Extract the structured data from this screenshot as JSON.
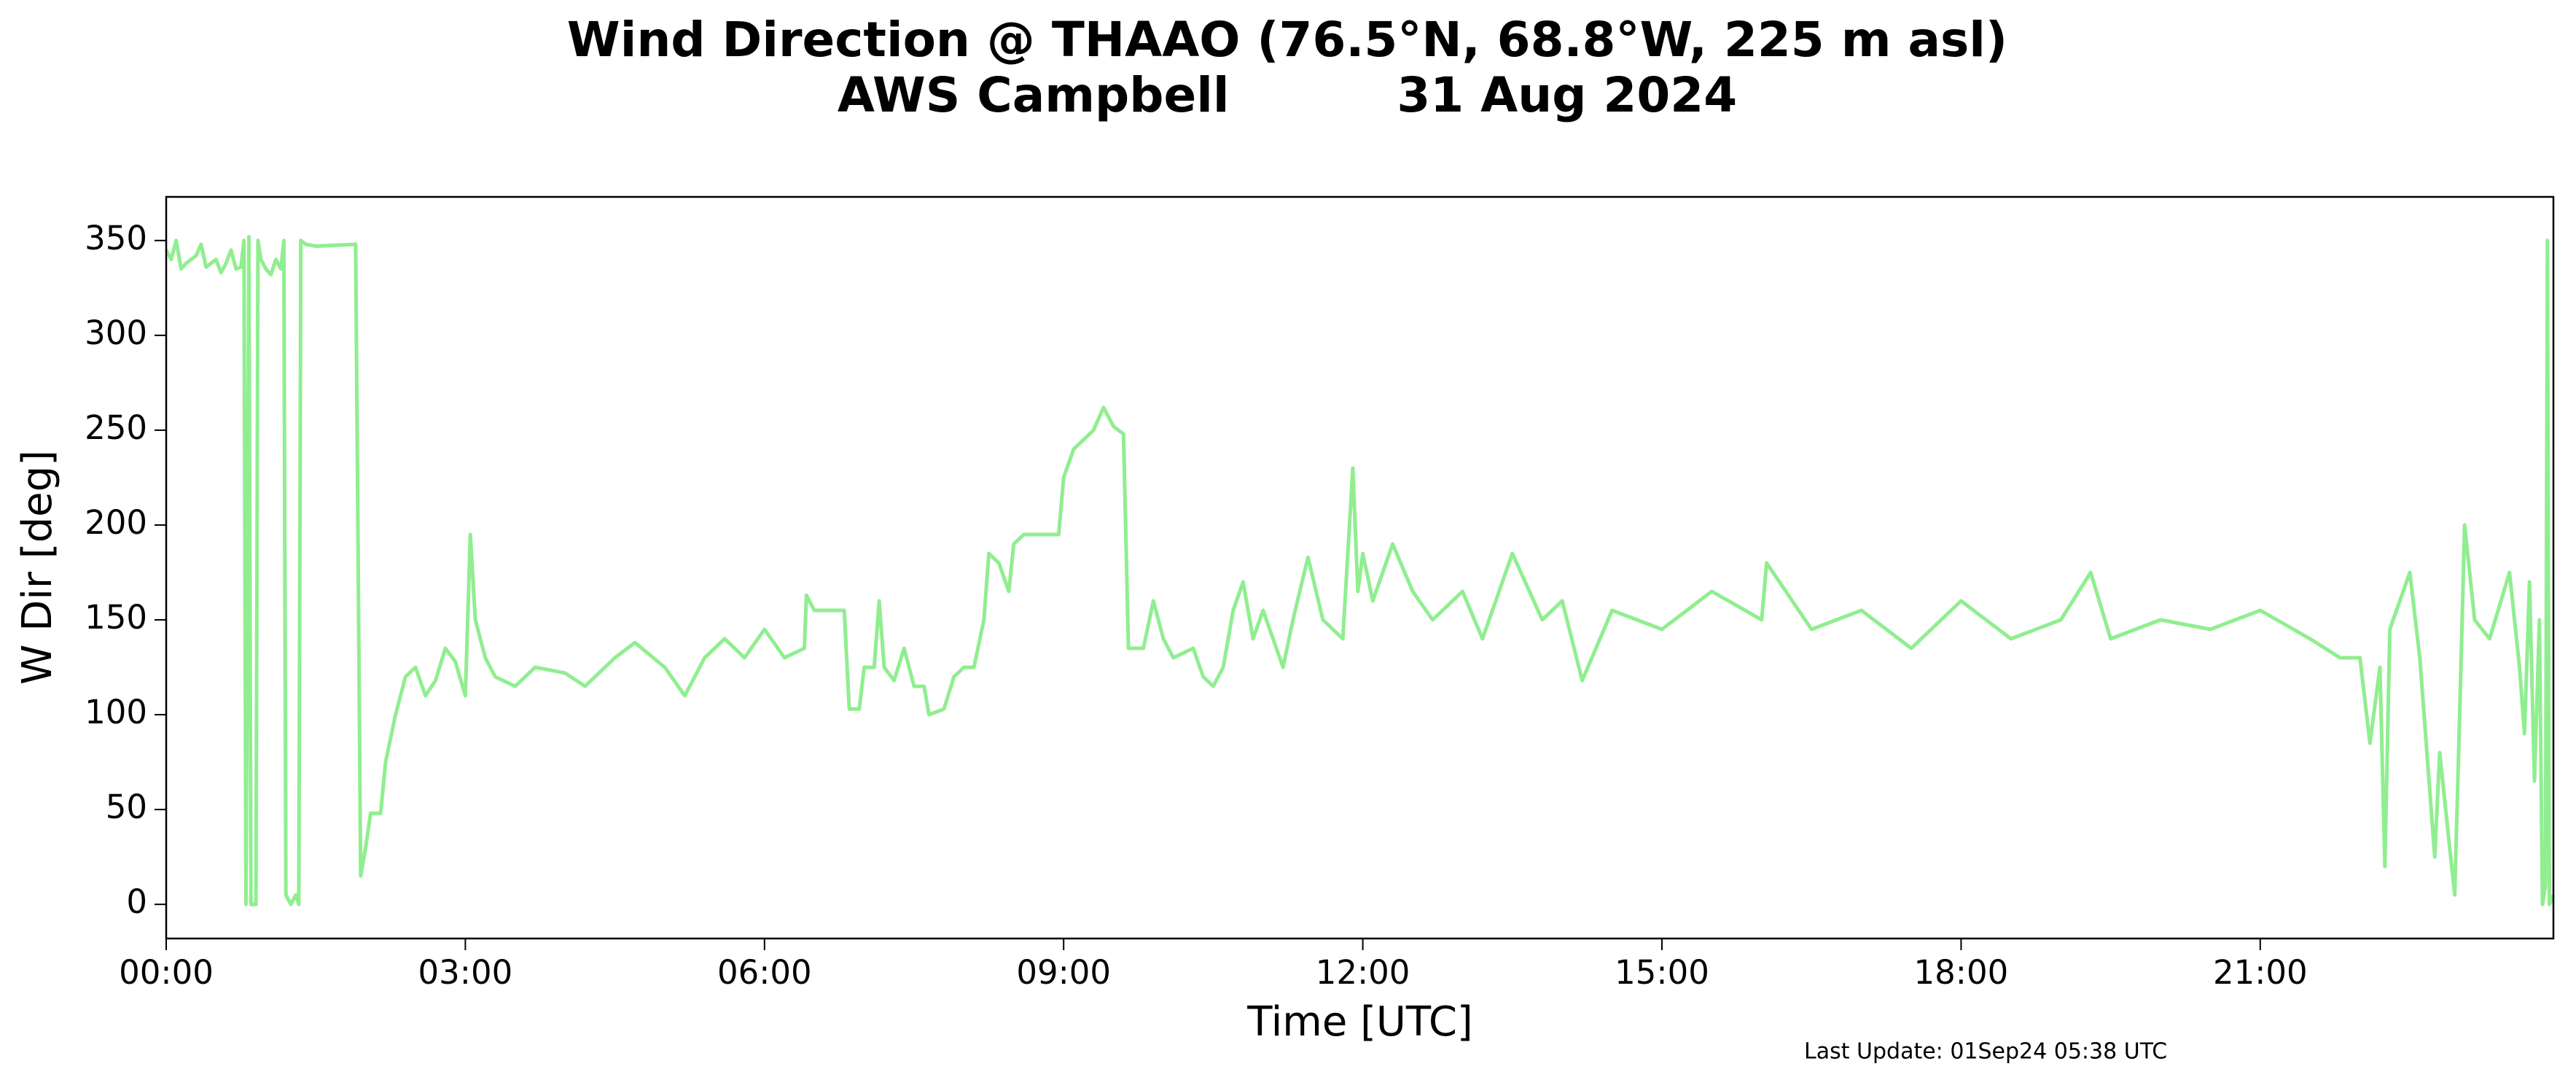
{
  "chart_data": {
    "type": "line",
    "title": "Wind Direction @ THAAO (76.5°N, 68.8°W, 225 m asl)",
    "subtitle": "AWS Campbell          31 Aug 2024",
    "xlabel": "Time [UTC]",
    "ylabel": "W Dir [deg]",
    "annotation": "Last Update: 01Sep24 05:38 UTC",
    "xlim": [
      0,
      23.94
    ],
    "ylim": [
      -18,
      373
    ],
    "xticks": [
      {
        "value": 0,
        "label": "00:00"
      },
      {
        "value": 3,
        "label": "03:00"
      },
      {
        "value": 6,
        "label": "06:00"
      },
      {
        "value": 9,
        "label": "09:00"
      },
      {
        "value": 12,
        "label": "12:00"
      },
      {
        "value": 15,
        "label": "15:00"
      },
      {
        "value": 18,
        "label": "18:00"
      },
      {
        "value": 21,
        "label": "21:00"
      }
    ],
    "yticks": [
      0,
      50,
      100,
      150,
      200,
      250,
      300,
      350
    ],
    "grid": false,
    "x": [
      0,
      0.05,
      0.1,
      0.15,
      0.2,
      0.3,
      0.35,
      0.4,
      0.5,
      0.55,
      0.6,
      0.65,
      0.7,
      0.75,
      0.78,
      0.8,
      0.83,
      0.85,
      0.9,
      0.92,
      0.95,
      1.0,
      1.05,
      1.1,
      1.15,
      1.18,
      1.2,
      1.25,
      1.3,
      1.33,
      1.35,
      1.4,
      1.5,
      1.9,
      1.95,
      2.0,
      2.05,
      2.15,
      2.2,
      2.3,
      2.4,
      2.5,
      2.6,
      2.7,
      2.8,
      2.9,
      3.0,
      3.05,
      3.1,
      3.2,
      3.3,
      3.5,
      3.7,
      4.0,
      4.2,
      4.5,
      4.7,
      5.0,
      5.2,
      5.4,
      5.6,
      5.8,
      6.0,
      6.2,
      6.4,
      6.42,
      6.5,
      6.8,
      6.85,
      6.95,
      7.0,
      7.1,
      7.15,
      7.2,
      7.3,
      7.4,
      7.5,
      7.6,
      7.65,
      7.8,
      7.9,
      8.0,
      8.1,
      8.2,
      8.25,
      8.35,
      8.45,
      8.5,
      8.6,
      8.95,
      9.0,
      9.1,
      9.2,
      9.3,
      9.4,
      9.5,
      9.6,
      9.65,
      9.8,
      9.9,
      10.0,
      10.1,
      10.3,
      10.4,
      10.5,
      10.6,
      10.7,
      10.8,
      10.9,
      11.0,
      11.2,
      11.3,
      11.45,
      11.6,
      11.8,
      11.9,
      11.95,
      12.0,
      12.1,
      12.3,
      12.5,
      12.7,
      13.0,
      13.2,
      13.5,
      13.8,
      14.0,
      14.2,
      14.5,
      15.0,
      15.5,
      16.0,
      16.05,
      16.5,
      17.0,
      17.5,
      18.0,
      18.5,
      19.0,
      19.3,
      19.5,
      20.0,
      20.5,
      21.0,
      21.5,
      21.8,
      22.0,
      22.1,
      22.2,
      22.25,
      22.3,
      22.5,
      22.6,
      22.7,
      22.75,
      22.8,
      22.9,
      22.95,
      23.0,
      23.05,
      23.15,
      23.3,
      23.5,
      23.6,
      23.65,
      23.7,
      23.75,
      23.8,
      23.83,
      23.86,
      23.88,
      23.9,
      23.94
    ],
    "series": [
      {
        "name": "W Dir",
        "color": "#90ee90",
        "values": [
          345,
          340,
          350,
          335,
          338,
          342,
          348,
          336,
          340,
          333,
          338,
          345,
          335,
          336,
          350,
          0,
          352,
          0,
          0,
          350,
          340,
          335,
          332,
          340,
          335,
          350,
          5,
          0,
          5,
          0,
          350,
          348,
          347,
          348,
          15,
          30,
          48,
          48,
          75,
          100,
          120,
          125,
          110,
          118,
          135,
          128,
          110,
          195,
          150,
          130,
          120,
          115,
          125,
          122,
          115,
          130,
          138,
          125,
          110,
          130,
          140,
          130,
          145,
          130,
          135,
          163,
          155,
          155,
          103,
          103,
          125,
          125,
          160,
          125,
          118,
          135,
          115,
          115,
          100,
          103,
          120,
          125,
          125,
          150,
          185,
          180,
          165,
          190,
          195,
          195,
          225,
          240,
          245,
          250,
          262,
          252,
          248,
          135,
          135,
          160,
          140,
          130,
          135,
          120,
          115,
          125,
          155,
          170,
          140,
          155,
          125,
          150,
          183,
          150,
          140,
          230,
          165,
          185,
          160,
          190,
          165,
          150,
          165,
          140,
          185,
          150,
          160,
          118,
          155,
          145,
          165,
          150,
          180,
          145,
          155,
          135,
          160,
          140,
          150,
          175,
          140,
          150,
          145,
          155,
          140,
          130,
          130,
          85,
          125,
          20,
          145,
          175,
          130,
          60,
          25,
          80,
          30,
          5,
          100,
          200,
          150,
          140,
          175,
          125,
          90,
          170,
          65,
          150,
          0,
          10,
          350,
          0,
          5
        ]
      }
    ]
  }
}
